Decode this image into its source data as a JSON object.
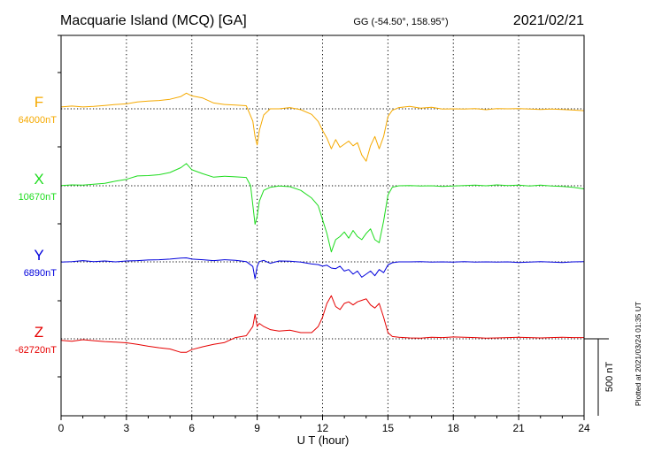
{
  "header": {
    "station": "Macquarie Island (MCQ)  [GA]",
    "coords": "GG (-54.50°, 158.95°)",
    "date": "2021/02/21"
  },
  "plotted_note": "Plotted at 2021/03/24 01:35 UT",
  "chart_data": {
    "type": "line",
    "xlabel": "U T (hour)",
    "x_ticks": [
      "0",
      "3",
      "6",
      "9",
      "12",
      "15",
      "18",
      "21",
      "24"
    ],
    "xlim": [
      0,
      24
    ],
    "grid": true,
    "scale_bar": {
      "value": 500,
      "label": "500 nT"
    },
    "series": [
      {
        "name": "F",
        "baseline_label": "64000nT",
        "baseline": 64000,
        "color": "#f5a900",
        "x": [
          0,
          0.5,
          1,
          1.5,
          2,
          2.5,
          3,
          3.5,
          4,
          4.5,
          5,
          5.5,
          5.75,
          6,
          6.5,
          7,
          7.5,
          8,
          8.5,
          8.8,
          8.9,
          9,
          9.1,
          9.3,
          9.6,
          10,
          10.5,
          11,
          11.5,
          11.8,
          12,
          12.2,
          12.4,
          12.6,
          12.8,
          13,
          13.2,
          13.4,
          13.6,
          13.8,
          14,
          14.2,
          14.4,
          14.6,
          14.8,
          15,
          15.2,
          15.5,
          16,
          16.5,
          17,
          17.5,
          18,
          18.5,
          19,
          19.5,
          20,
          20.5,
          21,
          21.5,
          22,
          22.5,
          23,
          23.5,
          24
        ],
        "y": [
          64012,
          64018,
          64012,
          64016,
          64022,
          64028,
          64032,
          64044,
          64050,
          64054,
          64062,
          64080,
          64102,
          64084,
          64070,
          64038,
          64028,
          64024,
          64020,
          63920,
          63820,
          63765,
          63860,
          63960,
          64000,
          64000,
          64008,
          63994,
          63964,
          63918,
          63860,
          63810,
          63740,
          63800,
          63750,
          63770,
          63790,
          63760,
          63780,
          63700,
          63660,
          63760,
          63820,
          63740,
          63820,
          63950,
          63990,
          64008,
          64016,
          64004,
          64010,
          63998,
          64000,
          63998,
          64002,
          63994,
          64002,
          64000,
          64002,
          63998,
          63996,
          63998,
          63996,
          63992,
          63988
        ]
      },
      {
        "name": "X",
        "baseline_label": "10670nT",
        "baseline": 10670,
        "color": "#1edc1e",
        "x": [
          0,
          0.5,
          1,
          1.5,
          2,
          2.5,
          3,
          3.5,
          4,
          4.5,
          5,
          5.5,
          5.75,
          6,
          6.5,
          7,
          7.5,
          8,
          8.5,
          8.7,
          8.9,
          9,
          9.1,
          9.3,
          9.6,
          10,
          10.5,
          11,
          11.5,
          11.8,
          12,
          12.2,
          12.4,
          12.6,
          12.8,
          13,
          13.2,
          13.4,
          13.6,
          13.8,
          14,
          14.2,
          14.4,
          14.6,
          14.8,
          15,
          15.2,
          15.5,
          16,
          16.5,
          17,
          17.5,
          18,
          18.5,
          19,
          19.5,
          20,
          20.5,
          21,
          21.5,
          22,
          22.5,
          23,
          23.5,
          24
        ],
        "y": [
          10672,
          10676,
          10674,
          10680,
          10686,
          10700,
          10712,
          10734,
          10736,
          10742,
          10756,
          10788,
          10814,
          10774,
          10748,
          10726,
          10732,
          10728,
          10724,
          10670,
          10420,
          10470,
          10570,
          10640,
          10660,
          10668,
          10664,
          10640,
          10590,
          10540,
          10450,
          10360,
          10240,
          10320,
          10340,
          10370,
          10330,
          10380,
          10340,
          10320,
          10360,
          10390,
          10320,
          10300,
          10440,
          10610,
          10660,
          10670,
          10672,
          10668,
          10670,
          10666,
          10668,
          10672,
          10674,
          10670,
          10676,
          10672,
          10674,
          10668,
          10674,
          10668,
          10666,
          10660,
          10650
        ]
      },
      {
        "name": "Y",
        "baseline_label": "6890nT",
        "baseline": 6890,
        "color": "#0000dc",
        "x": [
          0,
          0.5,
          1,
          1.5,
          2,
          2.5,
          3,
          3.5,
          4,
          4.5,
          5,
          5.5,
          5.75,
          6,
          6.5,
          7,
          7.5,
          8,
          8.5,
          8.8,
          8.9,
          9,
          9.1,
          9.3,
          9.6,
          10,
          10.5,
          11,
          11.5,
          11.8,
          12,
          12.2,
          12.4,
          12.6,
          12.8,
          13,
          13.2,
          13.4,
          13.6,
          13.8,
          14,
          14.2,
          14.4,
          14.6,
          14.8,
          15,
          15.2,
          15.5,
          16,
          16.5,
          17,
          17.5,
          18,
          18.5,
          19,
          19.5,
          20,
          20.5,
          21,
          21.5,
          22,
          22.5,
          23,
          23.5,
          24
        ],
        "y": [
          6888,
          6892,
          6898,
          6892,
          6896,
          6890,
          6896,
          6898,
          6902,
          6904,
          6908,
          6914,
          6916,
          6908,
          6904,
          6898,
          6904,
          6900,
          6892,
          6860,
          6780,
          6860,
          6892,
          6900,
          6880,
          6896,
          6894,
          6888,
          6876,
          6872,
          6862,
          6868,
          6850,
          6846,
          6862,
          6830,
          6840,
          6810,
          6830,
          6790,
          6810,
          6830,
          6800,
          6840,
          6820,
          6870,
          6884,
          6890,
          6890,
          6892,
          6888,
          6890,
          6888,
          6892,
          6888,
          6890,
          6888,
          6890,
          6886,
          6888,
          6892,
          6888,
          6886,
          6890,
          6892
        ]
      },
      {
        "name": "Z",
        "baseline_label": "-62720nT",
        "baseline": -62720,
        "color": "#e60000",
        "x": [
          0,
          0.5,
          1,
          1.5,
          2,
          2.5,
          3,
          3.5,
          4,
          4.5,
          5,
          5.5,
          5.75,
          6,
          6.5,
          7,
          7.5,
          8,
          8.5,
          8.8,
          8.9,
          9,
          9.1,
          9.3,
          9.6,
          10,
          10.5,
          11,
          11.5,
          11.8,
          12,
          12.2,
          12.4,
          12.6,
          12.8,
          13,
          13.2,
          13.4,
          13.6,
          13.8,
          14,
          14.2,
          14.4,
          14.6,
          14.8,
          15,
          15.2,
          15.5,
          16,
          16.5,
          17,
          17.5,
          18,
          18.5,
          19,
          19.5,
          20,
          20.5,
          21,
          21.5,
          22,
          22.5,
          23,
          23.5,
          24
        ],
        "y": [
          -62730,
          -62736,
          -62726,
          -62732,
          -62738,
          -62742,
          -62746,
          -62756,
          -62768,
          -62778,
          -62786,
          -62808,
          -62808,
          -62790,
          -62772,
          -62756,
          -62744,
          -62712,
          -62700,
          -62640,
          -62560,
          -62640,
          -62620,
          -62640,
          -62660,
          -62670,
          -62664,
          -62680,
          -62680,
          -62640,
          -62580,
          -62490,
          -62440,
          -62510,
          -62530,
          -62490,
          -62480,
          -62500,
          -62480,
          -62470,
          -62460,
          -62500,
          -62520,
          -62490,
          -62580,
          -62680,
          -62705,
          -62710,
          -62714,
          -62716,
          -62710,
          -62712,
          -62708,
          -62710,
          -62712,
          -62716,
          -62714,
          -62712,
          -62710,
          -62712,
          -62714,
          -62712,
          -62710,
          -62712,
          -62712
        ]
      }
    ]
  }
}
